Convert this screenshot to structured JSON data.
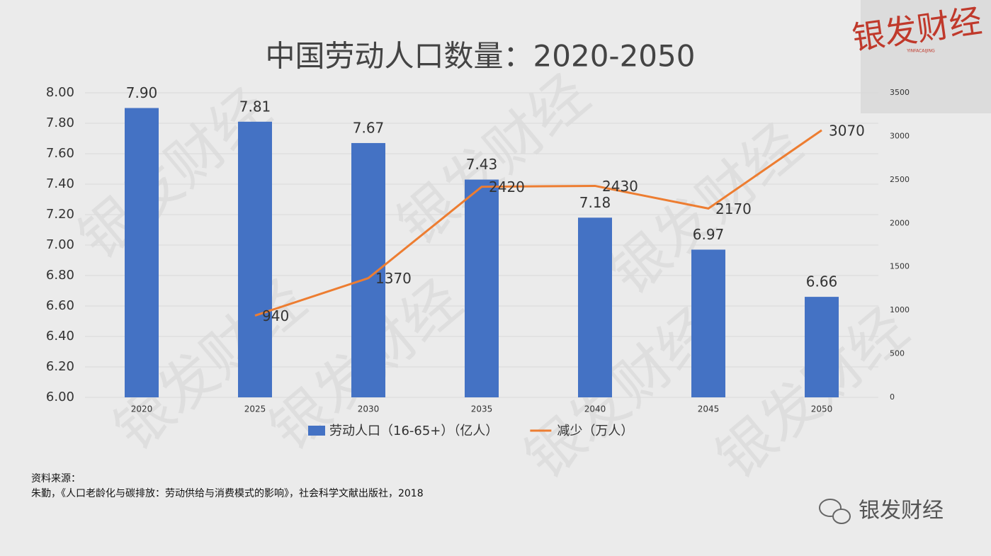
{
  "chart_data": {
    "type": "bar_line",
    "title": "中国劳动人口数量：2020-2050",
    "categories": [
      "2020",
      "2025",
      "2030",
      "2035",
      "2040",
      "2045",
      "2050"
    ],
    "series": [
      {
        "name": "劳动人口（16-65+）（亿人）",
        "type": "bar",
        "color": "#4472c4",
        "axis": "y",
        "values": [
          7.9,
          7.81,
          7.67,
          7.43,
          7.18,
          6.97,
          6.66
        ],
        "value_labels": [
          "7.90",
          "7.81",
          "7.67",
          "7.43",
          "7.18",
          "6.97",
          "6.66"
        ]
      },
      {
        "name": "减少（万人）",
        "type": "line",
        "color": "#ed7d31",
        "axis": "y2",
        "values": [
          null,
          940,
          1370,
          2420,
          2430,
          2170,
          3070
        ]
      }
    ],
    "ylim": [
      6,
      8
    ],
    "yticks": [
      {
        "value": 6,
        "label": "6.00"
      },
      {
        "value": 6.2,
        "label": "6.20"
      },
      {
        "value": 6.4,
        "label": "6.40"
      },
      {
        "value": 6.6,
        "label": "6.60"
      },
      {
        "value": 6.8,
        "label": "6.80"
      },
      {
        "value": 7,
        "label": "7.00"
      },
      {
        "value": 7.2,
        "label": "7.20"
      },
      {
        "value": 7.4,
        "label": "7.40"
      },
      {
        "value": 7.6,
        "label": "7.60"
      },
      {
        "value": 7.8,
        "label": "7.80"
      },
      {
        "value": 8,
        "label": "8.00"
      }
    ],
    "y2lim": [
      0,
      3500
    ],
    "y2ticks": [
      0,
      500,
      1000,
      1500,
      2000,
      2500,
      3000,
      3500
    ],
    "grid": true,
    "legend": "bottom"
  },
  "source": {
    "heading": "资料来源：",
    "text": "朱勤，《人口老龄化与碳排放：劳动供给与消费模式的影响》，社会科学文献出版社，2018"
  },
  "brand": "银发财经",
  "brand_latin": "YINFACAIJING"
}
